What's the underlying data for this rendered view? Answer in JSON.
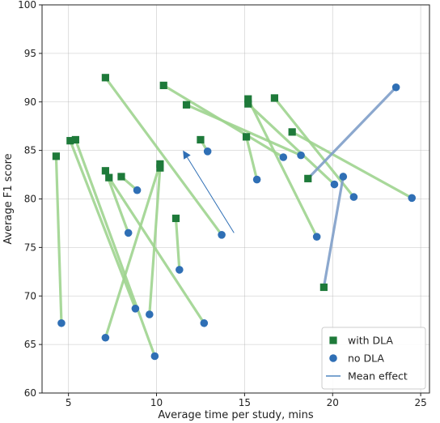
{
  "chart_data": {
    "type": "scatter",
    "title": "",
    "xlabel": "Average time per study, mins",
    "ylabel": "Average F1 score",
    "xlim": [
      3.5,
      25.5
    ],
    "ylim": [
      60,
      100
    ],
    "xticks": [
      5,
      10,
      15,
      20,
      25
    ],
    "yticks": [
      60,
      65,
      70,
      75,
      80,
      85,
      90,
      95,
      100
    ],
    "grid": true,
    "legend_position": "lower-right",
    "colors": {
      "with_dla": "#1e7a3a",
      "no_dla": "#2f6fb5",
      "improve_line": "#9fd48f",
      "worsen_line": "#7f9ec9",
      "mean_effect": "#2f6fb5"
    },
    "series": [
      {
        "name": "with DLA",
        "marker": "square",
        "color": "#1e7a3a"
      },
      {
        "name": "no DLA",
        "marker": "circle",
        "color": "#2f6fb5"
      },
      {
        "name": "Mean effect",
        "marker": "line",
        "color": "#2f6fb5"
      }
    ],
    "pairs": [
      {
        "with": [
          4.3,
          84.4
        ],
        "without": [
          4.6,
          67.2
        ]
      },
      {
        "with": [
          5.1,
          86.0
        ],
        "without": [
          8.8,
          68.7
        ]
      },
      {
        "with": [
          5.4,
          86.1
        ],
        "without": [
          9.9,
          63.8
        ]
      },
      {
        "with": [
          7.1,
          82.9
        ],
        "without": [
          8.4,
          76.5
        ]
      },
      {
        "with": [
          7.3,
          82.2
        ],
        "without": [
          12.7,
          67.2
        ]
      },
      {
        "with": [
          7.1,
          92.5
        ],
        "without": [
          13.7,
          76.3
        ]
      },
      {
        "with": [
          8.0,
          82.3
        ],
        "without": [
          8.9,
          80.9
        ]
      },
      {
        "with": [
          10.2,
          83.6
        ],
        "without": [
          7.1,
          65.7
        ]
      },
      {
        "with": [
          10.2,
          83.2
        ],
        "without": [
          9.6,
          68.1
        ]
      },
      {
        "with": [
          11.1,
          78.0
        ],
        "without": [
          11.3,
          72.7
        ]
      },
      {
        "with": [
          10.4,
          91.7
        ],
        "without": [
          17.2,
          84.3
        ]
      },
      {
        "with": [
          11.7,
          89.7
        ],
        "without": [
          18.2,
          84.5
        ]
      },
      {
        "with": [
          12.5,
          86.1
        ],
        "without": [
          12.9,
          84.9
        ]
      },
      {
        "with": [
          15.1,
          86.4
        ],
        "without": [
          15.7,
          82.0
        ]
      },
      {
        "with": [
          15.2,
          90.3
        ],
        "without": [
          19.1,
          76.1
        ]
      },
      {
        "with": [
          15.2,
          89.8
        ],
        "without": [
          20.1,
          81.5
        ]
      },
      {
        "with": [
          16.7,
          90.4
        ],
        "without": [
          21.2,
          80.2
        ]
      },
      {
        "with": [
          17.7,
          86.9
        ],
        "without": [
          24.5,
          80.1
        ]
      },
      {
        "with": [
          18.6,
          82.1
        ],
        "without": [
          23.6,
          91.5
        ]
      },
      {
        "with": [
          19.5,
          70.9
        ],
        "without": [
          20.6,
          82.3
        ]
      }
    ],
    "mean_effect": {
      "from": [
        14.4,
        76.5
      ],
      "to": [
        11.5,
        85.0
      ]
    }
  }
}
